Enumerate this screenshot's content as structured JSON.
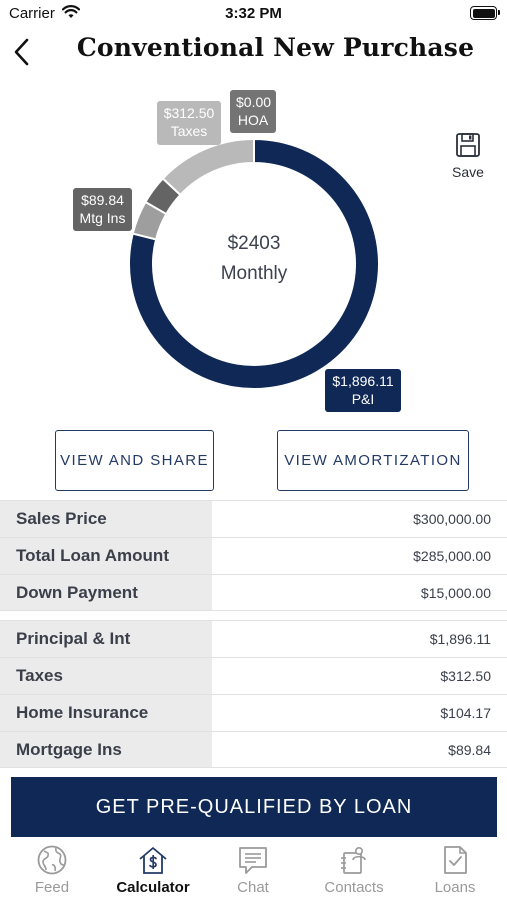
{
  "status_bar": {
    "carrier": "Carrier",
    "time": "3:32 PM"
  },
  "header": {
    "title": "Conventional New Purchase"
  },
  "chart": {
    "center_amount": "$2403",
    "center_period": "Monthly",
    "labels": {
      "taxes_amount": "$312.50",
      "taxes_name": "Taxes",
      "hoa_amount": "$0.00",
      "hoa_name": "HOA",
      "mtg_amount": "$89.84",
      "mtg_name": "Mtg Ins",
      "pi_amount": "$1,896.11",
      "pi_name": "P&I"
    }
  },
  "chart_data": {
    "type": "pie",
    "categories": [
      "P&I",
      "Home Insurance",
      "Mtg Ins",
      "Taxes",
      "HOA"
    ],
    "values": [
      1896.11,
      104.17,
      89.84,
      312.5,
      0.0
    ],
    "title": "",
    "colors": [
      "#0f2855",
      "#9e9e9e",
      "#646464",
      "#b9b9b9",
      "#747474"
    ]
  },
  "save": {
    "label": "Save",
    "icon": "floppy-disk-icon"
  },
  "buttons": {
    "view_share": "VIEW AND SHARE",
    "view_amortization": "VIEW AMORTIZATION"
  },
  "loan_table": [
    {
      "label": "Sales Price",
      "value": "$300,000.00"
    },
    {
      "label": "Total Loan Amount",
      "value": "$285,000.00"
    },
    {
      "label": "Down Payment",
      "value": "$15,000.00"
    }
  ],
  "payment_table": [
    {
      "label": "Principal & Int",
      "value": "$1,896.11"
    },
    {
      "label": "Taxes",
      "value": "$312.50"
    },
    {
      "label": "Home Insurance",
      "value": "$104.17"
    },
    {
      "label": "Mortgage Ins",
      "value": "$89.84"
    }
  ],
  "cta": {
    "label": "GET PRE-QUALIFIED BY LOAN"
  },
  "tabs": [
    {
      "label": "Feed",
      "icon": "globe-icon"
    },
    {
      "label": "Calculator",
      "icon": "house-dollar-icon",
      "active": true
    },
    {
      "label": "Chat",
      "icon": "chat-bubble-icon"
    },
    {
      "label": "Contacts",
      "icon": "contacts-icon"
    },
    {
      "label": "Loans",
      "icon": "document-check-icon"
    }
  ],
  "colors": {
    "navy": "#0f2855",
    "accent_border": "#243a66",
    "label_bg": "#ebebeb"
  }
}
